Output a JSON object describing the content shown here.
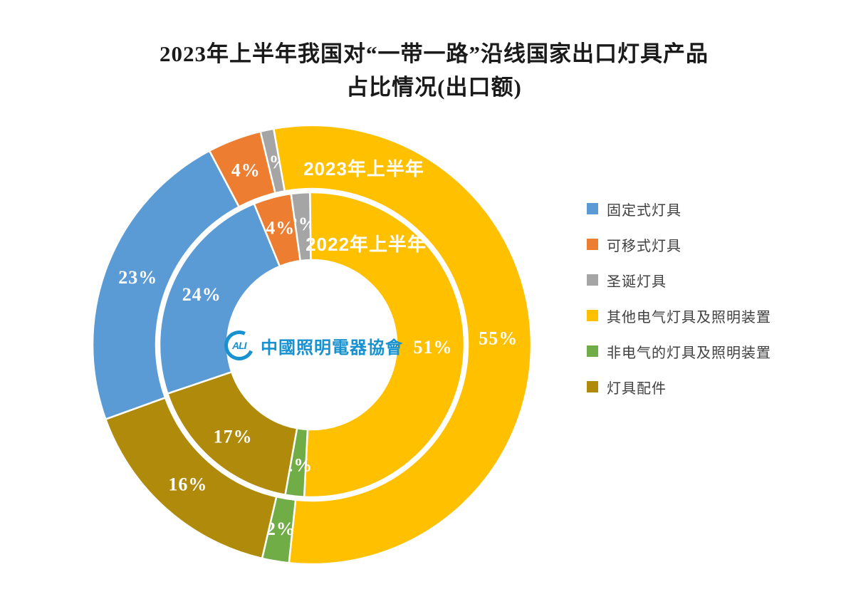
{
  "title": {
    "line1": "2023年上半年我国对“一带一路”沿线国家出口灯具产品",
    "line2": "占比情况(出口额)"
  },
  "legend": {
    "position": "right",
    "items": [
      {
        "label": "固定式灯具",
        "color": "#5B9BD5"
      },
      {
        "label": "可移式灯具",
        "color": "#ED7D31"
      },
      {
        "label": "圣诞灯具",
        "color": "#A5A5A5"
      },
      {
        "label": "其他电气灯具及照明装置",
        "color": "#FFC000"
      },
      {
        "label": "非电气的灯具及照明装置",
        "color": "#70AD47"
      },
      {
        "label": "灯具配件",
        "color": "#B08A0A"
      }
    ]
  },
  "center_logo": {
    "badge": "ALI",
    "text": "中國照明電器協會",
    "color": "#1791CF"
  },
  "chart_data": {
    "type": "pie",
    "subtype": "double-ring-doughnut",
    "title": "2023年上半年我国对“一带一路”沿线国家出口灯具产品占比情况(出口额)",
    "unit": "%",
    "legend_position": "right",
    "categories": [
      "固定式灯具",
      "可移式灯具",
      "圣诞灯具",
      "其他电气灯具及照明装置",
      "非电气的灯具及照明装置",
      "灯具配件"
    ],
    "colors": [
      "#5B9BD5",
      "#ED7D31",
      "#A5A5A5",
      "#FFC000",
      "#70AD47",
      "#B08A0A"
    ],
    "label_color": "#FFFFFF",
    "rings": [
      {
        "name": "2023年上半年",
        "position": "outer",
        "values_percent": [
          23,
          4,
          1,
          55,
          2,
          16
        ]
      },
      {
        "name": "2022年上半年",
        "position": "inner",
        "values_percent": [
          24,
          4,
          2,
          51,
          2,
          17
        ]
      }
    ]
  }
}
